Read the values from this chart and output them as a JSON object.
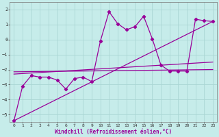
{
  "background_color": "#c6ecea",
  "grid_color": "#aad6d4",
  "line_color": "#990099",
  "xlim": [
    -0.5,
    23.5
  ],
  "ylim": [
    -5.5,
    2.5
  ],
  "xticks": [
    0,
    1,
    2,
    3,
    4,
    5,
    6,
    7,
    8,
    9,
    10,
    11,
    12,
    13,
    14,
    15,
    16,
    17,
    18,
    19,
    20,
    21,
    22,
    23
  ],
  "yticks": [
    -5,
    -4,
    -3,
    -2,
    -1,
    0,
    1,
    2
  ],
  "xlabel": "Windchill (Refroidissement éolien,°C)",
  "main_x": [
    0,
    1,
    2,
    3,
    4,
    5,
    6,
    7,
    8,
    9,
    10,
    11,
    12,
    13,
    14,
    15,
    16,
    17,
    18,
    19,
    20,
    21,
    22,
    23
  ],
  "main_y": [
    -5.4,
    -3.1,
    -2.4,
    -2.5,
    -2.5,
    -2.7,
    -3.3,
    -2.6,
    -2.5,
    -2.8,
    -0.1,
    1.85,
    1.05,
    0.65,
    0.85,
    1.55,
    0.05,
    -1.7,
    -2.1,
    -2.1,
    -2.1,
    1.35,
    1.25,
    1.2
  ],
  "trend1_x": [
    0,
    23
  ],
  "trend1_y": [
    -5.4,
    1.2
  ],
  "trend2_x": [
    0,
    23
  ],
  "trend2_y": [
    -2.3,
    -1.5
  ],
  "trend3_x": [
    0,
    23
  ],
  "trend3_y": [
    -2.15,
    -2.0
  ]
}
